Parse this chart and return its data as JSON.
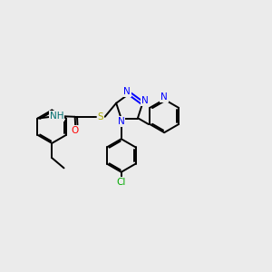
{
  "background_color": "#ebebeb",
  "bond_color": "#000000",
  "atom_colors": {
    "N": "#0000ff",
    "O": "#ff0000",
    "S": "#aaaa00",
    "Cl": "#00aa00",
    "H": "#007070",
    "C": "#000000"
  },
  "figsize": [
    3.0,
    3.0
  ],
  "dpi": 100,
  "lw": 1.4,
  "fs": 7.5
}
